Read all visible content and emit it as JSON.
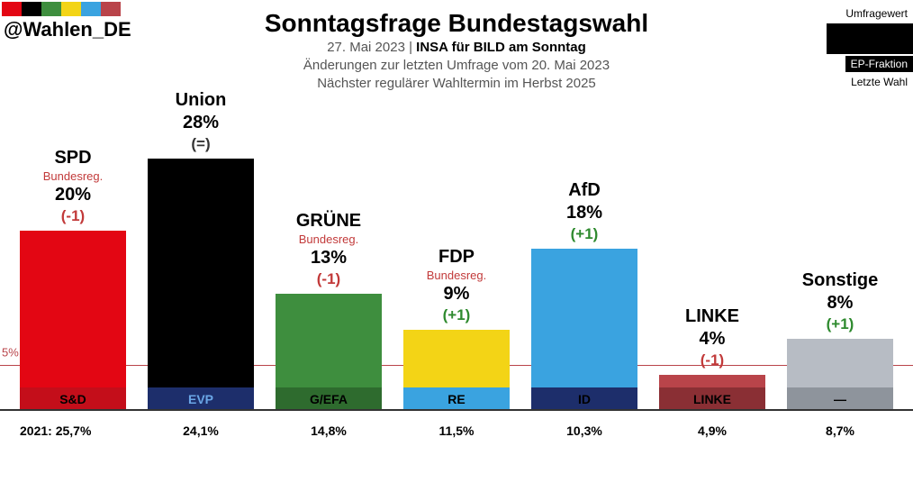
{
  "handle": "@Wahlen_DE",
  "logo_colors": [
    "#e30613",
    "#000000",
    "#3e8e3e",
    "#f3d416",
    "#3aa3e0",
    "#b9444a"
  ],
  "title": "Sonntagsfrage Bundestagswahl",
  "subtitle_date": "27. Mai 2023",
  "subtitle_source": "INSA für BILD am Sonntag",
  "subtitle_changes": "Änderungen zur letzten Umfrage vom 20. Mai 2023",
  "subtitle_next": "Nächster regulärer Wahltermin im Herbst 2025",
  "legend": {
    "umfragewert": "Umfragewert",
    "ep": "EP-Fraktion",
    "letzte": "Letzte Wahl"
  },
  "chart": {
    "type": "bar",
    "max_value": 28,
    "five_pct_threshold": 5,
    "five_pct_label": "5%",
    "baseline_color": "#333333",
    "threshold_color": "#b9444a",
    "background": "#ffffff",
    "gov_label": "Bundesreg.",
    "gov_color": "#c23a3a",
    "delta_colors": {
      "pos": "#2e8a2e",
      "neg": "#c23a3a",
      "eq": "#333333"
    },
    "ep_band_height": 26,
    "last_election_prefix": "2021: ",
    "bars": [
      {
        "party": "SPD",
        "gov": true,
        "value": 20,
        "delta": "(-1)",
        "delta_sign": "neg",
        "color": "#e30613",
        "ep_label": "S&D",
        "ep_color": "#c40e1a",
        "ep_text": "#000000",
        "last": "25,7%"
      },
      {
        "party": "Union",
        "gov": false,
        "value": 28,
        "delta": "(=)",
        "delta_sign": "eq",
        "color": "#000000",
        "ep_label": "EVP",
        "ep_color": "#1d2e6b",
        "ep_text": "#6aa6e6",
        "last": "24,1%"
      },
      {
        "party": "GRÜNE",
        "gov": true,
        "value": 13,
        "delta": "(-1)",
        "delta_sign": "neg",
        "color": "#3e8e3e",
        "ep_label": "G/EFA",
        "ep_color": "#2e6b2e",
        "ep_text": "#000000",
        "last": "14,8%"
      },
      {
        "party": "FDP",
        "gov": true,
        "value": 9,
        "delta": "(+1)",
        "delta_sign": "pos",
        "color": "#f3d416",
        "ep_label": "RE",
        "ep_color": "#3aa3e0",
        "ep_text": "#000000",
        "last": "11,5%"
      },
      {
        "party": "AfD",
        "gov": false,
        "value": 18,
        "delta": "(+1)",
        "delta_sign": "pos",
        "color": "#3aa3e0",
        "ep_label": "ID",
        "ep_color": "#1d2e6b",
        "ep_text": "#000000",
        "last": "10,3%"
      },
      {
        "party": "LINKE",
        "gov": false,
        "value": 4,
        "delta": "(-1)",
        "delta_sign": "neg",
        "color": "#b9444a",
        "ep_label": "LINKE",
        "ep_color": "#8a2f34",
        "ep_text": "#000000",
        "last": "4,9%"
      },
      {
        "party": "Sonstige",
        "gov": false,
        "value": 8,
        "delta": "(+1)",
        "delta_sign": "pos",
        "color": "#b7bcc4",
        "ep_label": "—",
        "ep_color": "#8e949c",
        "ep_text": "#000000",
        "last": "8,7%"
      }
    ]
  }
}
